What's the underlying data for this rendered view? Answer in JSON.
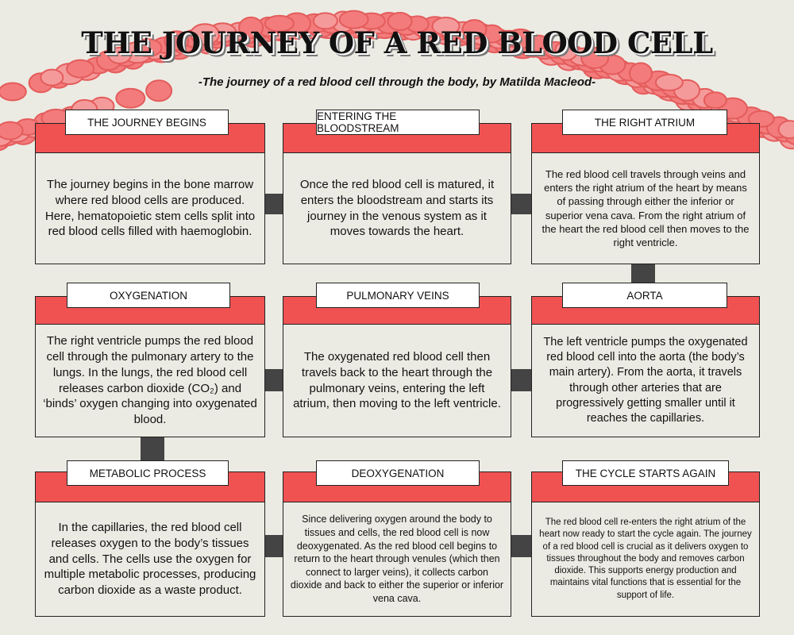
{
  "header": {
    "title": "THE JOURNEY OF A RED BLOOD CELL",
    "subtitle": "-The journey of a red blood cell through the body, by Matilda Macleod-"
  },
  "cards": [
    {
      "title": "THE JOURNEY BEGINS",
      "body": "The journey begins in the bone marrow where red blood cells are produced. Here, hematopoietic stem cells split into red blood cells filled with haemoglobin."
    },
    {
      "title": "ENTERING THE BLOODSTREAM",
      "body": "Once the red blood cell is matured, it enters the bloodstream and starts its journey in the venous system as it moves towards the heart."
    },
    {
      "title": "THE RIGHT ATRIUM",
      "body": "The red blood cell travels through veins and enters the right atrium of the heart by means of passing through either the inferior or superior vena cava. From the right atrium of the heart the red blood cell then moves to the right ventricle."
    },
    {
      "title": "OXYGENATION",
      "body": "The right ventricle pumps the red blood cell through the pulmonary artery to the lungs. In the lungs, the red blood cell releases carbon dioxide (CO₂) and ‘binds’ oxygen changing into oxygenated blood."
    },
    {
      "title": "PULMONARY VEINS",
      "body": "The oxygenated red blood cell then travels back to the heart through the pulmonary veins, entering the left atrium, then moving to the left ventricle."
    },
    {
      "title": "AORTA",
      "body": "The left ventricle pumps the oxygenated red blood cell into the aorta (the body’s main artery). From the aorta, it travels through other arteries that are progressively getting smaller until it reaches the capillaries."
    },
    {
      "title": "METABOLIC PROCESS",
      "body": "In the capillaries, the red blood cell releases oxygen to the body’s tissues and cells. The cells use the oxygen for multiple metabolic processes, producing carbon dioxide as a waste product."
    },
    {
      "title": "DEOXYGENATION",
      "body": "Since delivering oxygen around the body to tissues and cells, the red blood cell is now deoxygenated. As the red blood cell begins to return to the heart through venules (which then connect to larger veins), it collects carbon dioxide and back to either the superior or inferior vena cava."
    },
    {
      "title": "THE CYCLE STARTS AGAIN",
      "body": "The red blood cell re-enters the right atrium of the heart now ready to start the cycle again. The journey of a red blood cell is crucial as it delivers oxygen to tissues throughout the body and removes carbon dioxide. This supports energy production and maintains vital functions that is essential for the support of life."
    }
  ]
}
